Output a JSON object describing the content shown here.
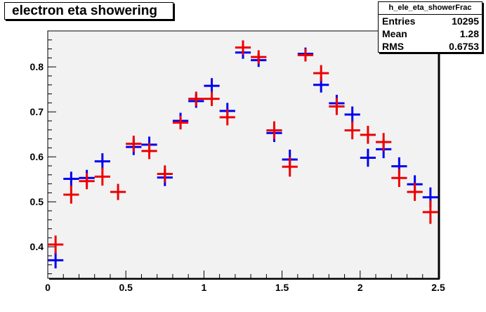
{
  "title": "electron eta showering",
  "stats": {
    "name": "h_ele_eta_showerFrac",
    "rows": [
      {
        "label": "Entries",
        "value": "10295"
      },
      {
        "label": "Mean",
        "value": "1.28"
      },
      {
        "label": "RMS",
        "value": "0.6753"
      }
    ]
  },
  "colors": {
    "frame_bg": "#f2f2f2",
    "blue": "#0000ee",
    "red": "#ee0000"
  },
  "chart_data": {
    "type": "scatter",
    "title": "electron eta showering",
    "xlabel": "",
    "ylabel": "",
    "xlim": [
      0,
      2.5
    ],
    "ylim": [
      0.33,
      0.88
    ],
    "xticks": [
      0,
      0.5,
      1,
      1.5,
      2,
      2.5
    ],
    "xtick_labels": [
      "0",
      "0.5",
      "1",
      "1.5",
      "2",
      "2.5"
    ],
    "yticks": [
      0.4,
      0.5,
      0.6,
      0.7,
      0.8
    ],
    "ytick_labels": [
      "0.4",
      "0.5",
      "0.6",
      "0.7",
      "0.8"
    ],
    "grid": false,
    "bin_width": 0.1,
    "series": [
      {
        "color": "#0000ee",
        "x": [
          0.05,
          0.15,
          0.25,
          0.35,
          0.45,
          0.55,
          0.65,
          0.75,
          0.85,
          0.95,
          1.05,
          1.15,
          1.25,
          1.35,
          1.45,
          1.55,
          1.65,
          1.75,
          1.85,
          1.95,
          2.05,
          2.15,
          2.25,
          2.35,
          2.45
        ],
        "y": [
          0.37,
          0.551,
          0.553,
          0.59,
          null,
          0.622,
          0.627,
          0.554,
          0.68,
          0.724,
          0.758,
          0.702,
          0.832,
          0.815,
          0.653,
          0.594,
          0.829,
          0.76,
          0.719,
          0.694,
          0.598,
          0.617,
          0.579,
          0.539,
          0.51
        ],
        "err": [
          0.018,
          0.016,
          0.018,
          0.018,
          null,
          0.018,
          0.018,
          0.019,
          0.018,
          0.015,
          0.017,
          0.018,
          0.014,
          0.015,
          0.02,
          0.022,
          0.014,
          0.017,
          0.019,
          0.018,
          0.02,
          0.02,
          0.02,
          0.02,
          0.022
        ]
      },
      {
        "color": "#ee0000",
        "x": [
          0.05,
          0.15,
          0.25,
          0.35,
          0.45,
          0.55,
          0.65,
          0.75,
          0.85,
          0.95,
          1.05,
          1.15,
          1.25,
          1.35,
          1.45,
          1.55,
          1.65,
          1.75,
          1.85,
          1.95,
          2.05,
          2.15,
          2.25,
          2.35,
          2.45
        ],
        "y": [
          0.405,
          0.516,
          0.546,
          0.556,
          0.522,
          0.629,
          0.613,
          0.562,
          0.676,
          0.729,
          0.729,
          0.688,
          0.843,
          0.822,
          0.659,
          0.578,
          0.826,
          0.786,
          0.712,
          0.659,
          0.649,
          0.633,
          0.553,
          0.522,
          0.477
        ]
      }
    ],
    "red_err": [
      0.02,
      0.02,
      0.018,
      0.02,
      0.018,
      0.018,
      0.018,
      0.019,
      0.015,
      0.016,
      0.016,
      0.018,
      0.016,
      0.015,
      0.02,
      0.022,
      0.014,
      0.018,
      0.019,
      0.02,
      0.02,
      0.02,
      0.02,
      0.02,
      0.026
    ]
  }
}
